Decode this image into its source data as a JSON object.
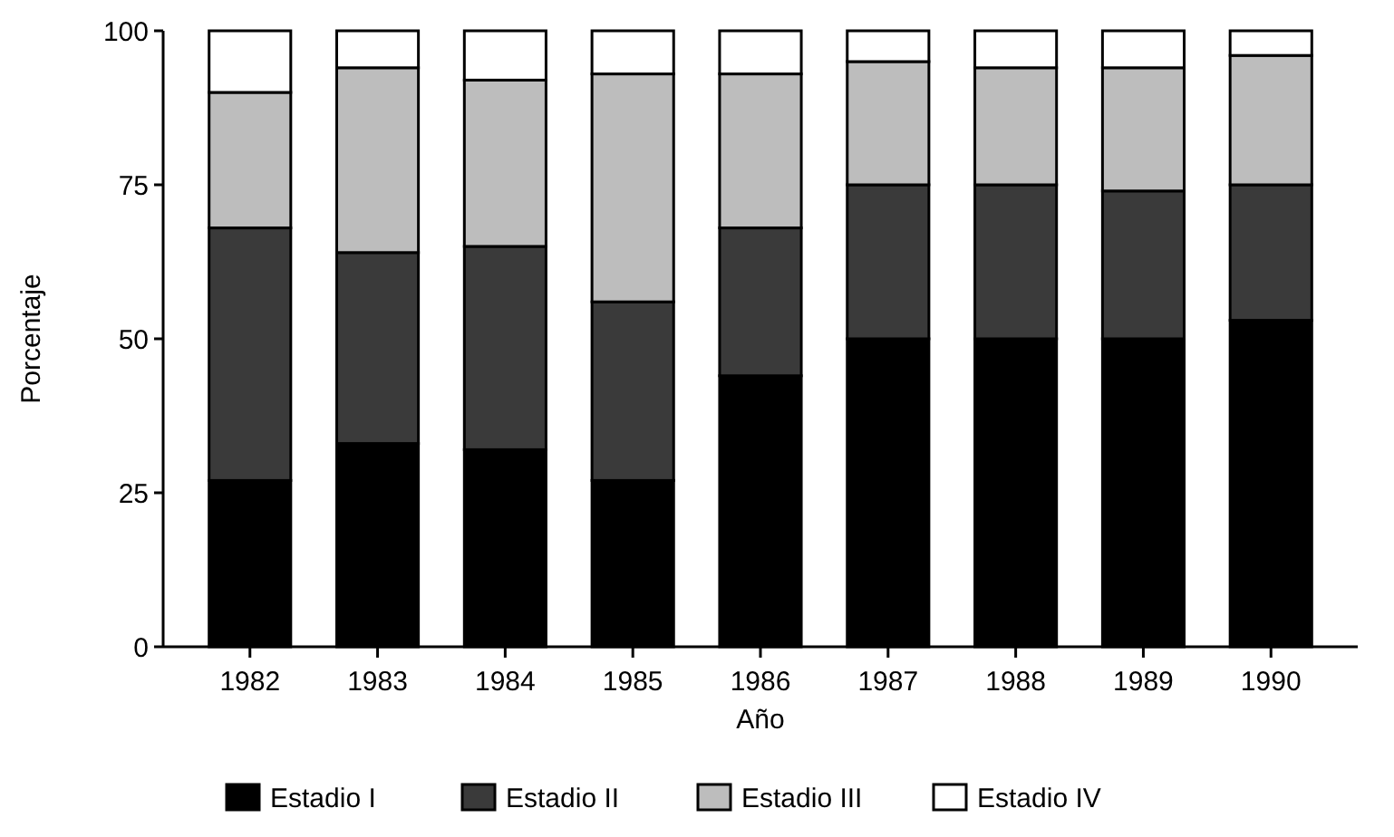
{
  "chart_data": {
    "type": "bar",
    "stacked": true,
    "xlabel": "Año",
    "ylabel": "Porcentaje",
    "categories": [
      "1982",
      "1983",
      "1984",
      "1985",
      "1986",
      "1987",
      "1988",
      "1989",
      "1990"
    ],
    "series": [
      {
        "name": "Estadio I",
        "color": "#000000",
        "values": [
          27,
          33,
          32,
          27,
          44,
          50,
          50,
          50,
          53
        ]
      },
      {
        "name": "Estadio II",
        "color": "#3a3a3a",
        "values": [
          41,
          31,
          33,
          29,
          24,
          25,
          25,
          24,
          22
        ]
      },
      {
        "name": "Estadio III",
        "color": "#bdbdbd",
        "values": [
          22,
          30,
          27,
          37,
          25,
          20,
          19,
          20,
          21
        ]
      },
      {
        "name": "Estadio IV",
        "color": "#ffffff",
        "values": [
          10,
          6,
          8,
          7,
          7,
          5,
          6,
          6,
          4
        ]
      }
    ],
    "ylim": [
      0,
      100
    ],
    "yticks": [
      0,
      25,
      50,
      75,
      100
    ],
    "legend": "bottom"
  }
}
